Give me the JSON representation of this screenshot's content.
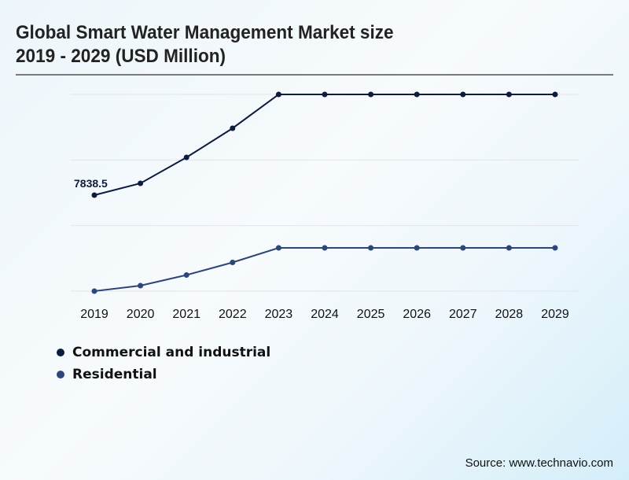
{
  "title_line1": "Global Smart Water Management Market size",
  "title_line2": "2019 - 2029 (USD Million)",
  "source": "Source: www.technavio.com",
  "chart_data": {
    "type": "line",
    "title": "Global Smart Water Management Market size 2019 - 2029 (USD Million)",
    "xlabel": "",
    "ylabel": "USD Million",
    "x": [
      "2019",
      "2020",
      "2021",
      "2022",
      "2023",
      "2024",
      "2025",
      "2026",
      "2027",
      "2028",
      "2029"
    ],
    "ylim": [
      0,
      16062
    ],
    "grid": true,
    "gridlines": 4,
    "legend_position": "bottom-left",
    "series": [
      {
        "name": "Commercial and industrial",
        "color": "#0d1b3e",
        "values": [
          7838.5,
          8802,
          10922,
          13300,
          16062,
          16062,
          16062,
          16062,
          16062,
          16062,
          16062
        ],
        "labels": {
          "0": "7838.5"
        }
      },
      {
        "name": "Residential",
        "color": "#2e4577",
        "values": [
          0,
          450,
          1317,
          2345,
          3534,
          3534,
          3534,
          3534,
          3534,
          3534,
          3534
        ]
      }
    ],
    "annotations": [
      "7838.5"
    ]
  }
}
